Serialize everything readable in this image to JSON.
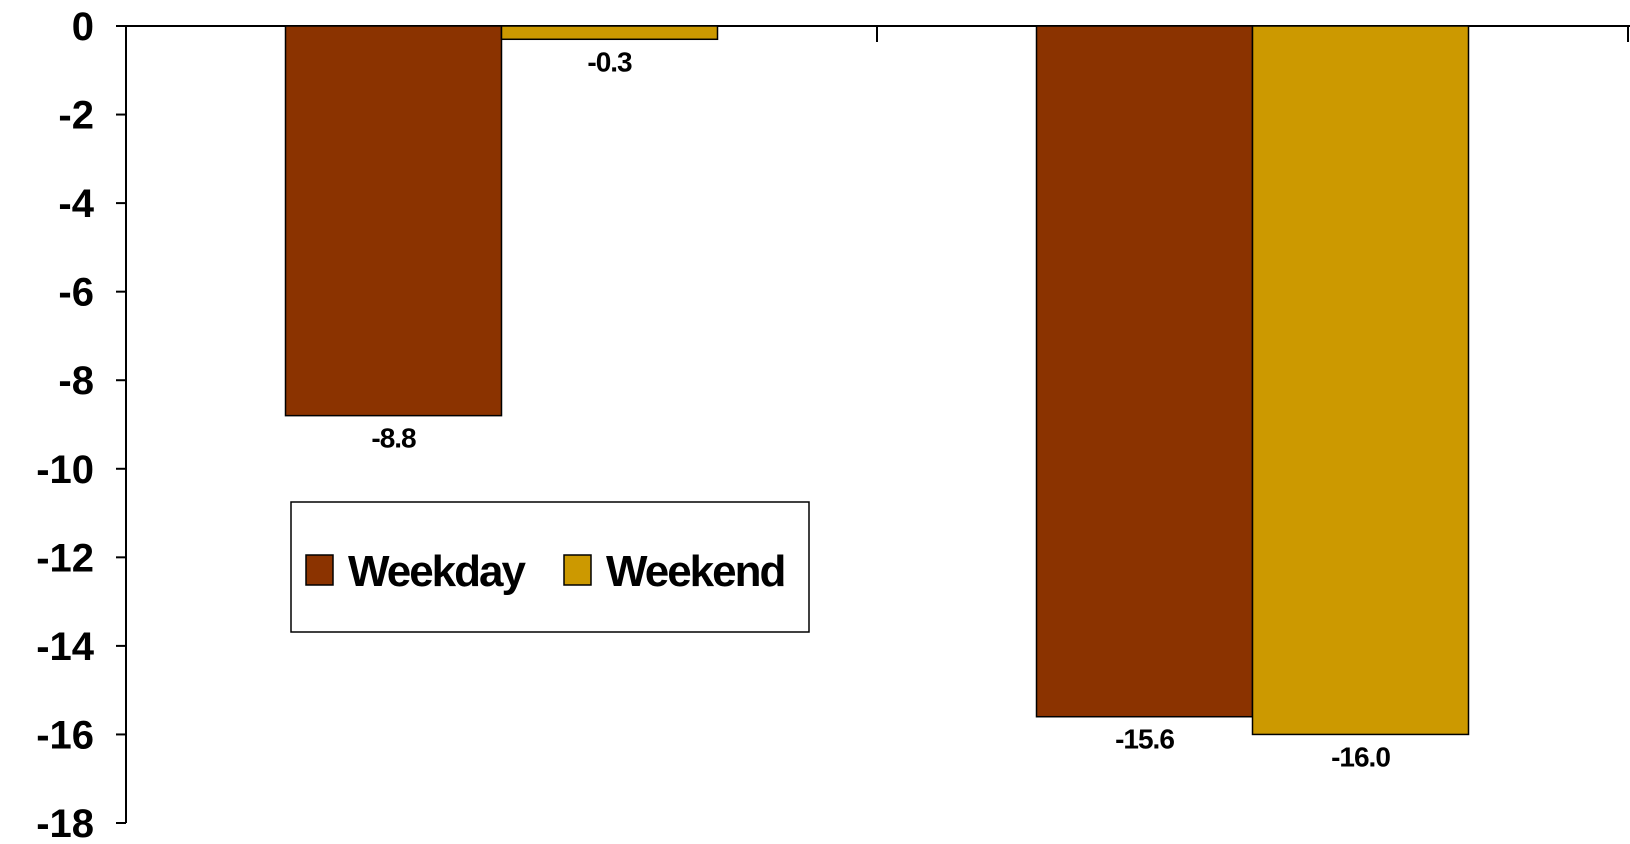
{
  "chart_data": {
    "type": "bar",
    "categories": [
      "",
      ""
    ],
    "series": [
      {
        "name": "Weekday",
        "values": [
          -8.8,
          -15.6
        ],
        "labels": [
          "-8.8",
          "-15.6"
        ],
        "color": "#8B3300"
      },
      {
        "name": "Weekend",
        "values": [
          -0.3,
          -16.0
        ],
        "labels": [
          "-0.3",
          "-16.0"
        ],
        "color": "#CC9900"
      }
    ],
    "ylim": [
      -18,
      0
    ],
    "yticks": [
      0,
      -2,
      -4,
      -6,
      -8,
      -10,
      -12,
      -14,
      -16,
      -18
    ],
    "title": "",
    "xlabel": "",
    "ylabel": "",
    "grid": false,
    "legend": {
      "position": "lower-left-center"
    }
  }
}
